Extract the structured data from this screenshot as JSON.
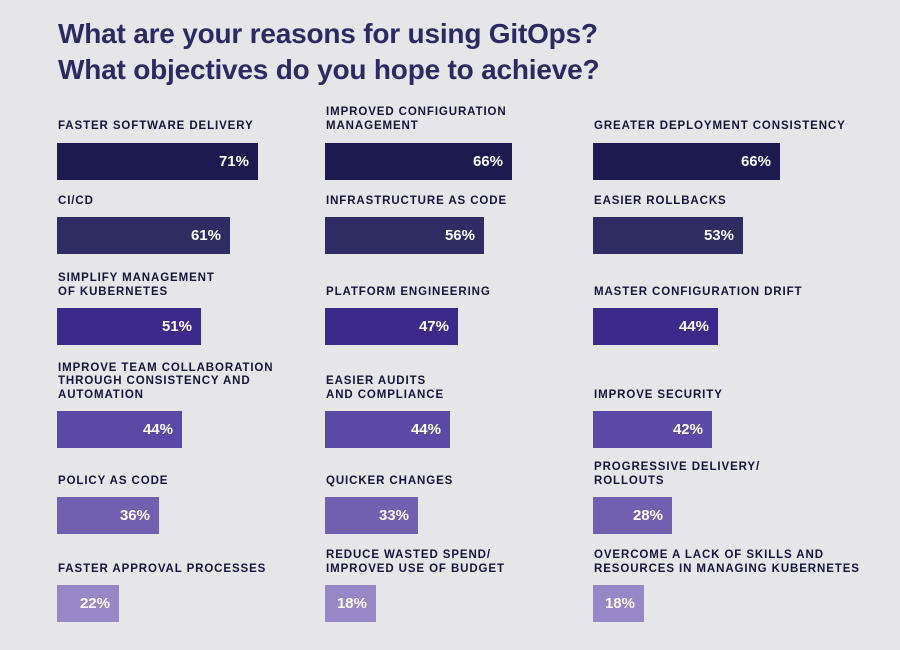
{
  "title_lines": [
    "What are your reasons for using GitOps?",
    "What objectives do you hope to achieve?"
  ],
  "chart_data": {
    "type": "bar",
    "title": "What are your reasons for using GitOps? What objectives do you hope to achieve?",
    "unit": "%",
    "xlim": [
      0,
      100
    ],
    "row_colors": [
      "#1c1a4f",
      "#2e2c63",
      "#3b2a8a",
      "#5a4aa5",
      "#7160b0",
      "#9887c7"
    ],
    "items": [
      {
        "row": 0,
        "col": 0,
        "label_lines": [
          "FASTER SOFTWARE DELIVERY"
        ],
        "value": 71,
        "value_label": "71%"
      },
      {
        "row": 0,
        "col": 1,
        "label_lines": [
          "IMPROVED CONFIGURATION",
          "MANAGEMENT"
        ],
        "value": 66,
        "value_label": "66%"
      },
      {
        "row": 0,
        "col": 2,
        "label_lines": [
          "GREATER DEPLOYMENT CONSISTENCY"
        ],
        "value": 66,
        "value_label": "66%"
      },
      {
        "row": 1,
        "col": 0,
        "label_lines": [
          "CI/CD"
        ],
        "value": 61,
        "value_label": "61%"
      },
      {
        "row": 1,
        "col": 1,
        "label_lines": [
          "INFRASTRUCTURE AS CODE"
        ],
        "value": 56,
        "value_label": "56%"
      },
      {
        "row": 1,
        "col": 2,
        "label_lines": [
          "EASIER ROLLBACKS"
        ],
        "value": 53,
        "value_label": "53%"
      },
      {
        "row": 2,
        "col": 0,
        "label_lines": [
          "SIMPLIFY MANAGEMENT",
          "OF KUBERNETES"
        ],
        "value": 51,
        "value_label": "51%"
      },
      {
        "row": 2,
        "col": 1,
        "label_lines": [
          "PLATFORM ENGINEERING"
        ],
        "value": 47,
        "value_label": "47%"
      },
      {
        "row": 2,
        "col": 2,
        "label_lines": [
          "MASTER CONFIGURATION DRIFT"
        ],
        "value": 44,
        "value_label": "44%"
      },
      {
        "row": 3,
        "col": 0,
        "label_lines": [
          "IMPROVE TEAM COLLABORATION",
          "THROUGH CONSISTENCY AND",
          "AUTOMATION"
        ],
        "value": 44,
        "value_label": "44%"
      },
      {
        "row": 3,
        "col": 1,
        "label_lines": [
          "EASIER AUDITS",
          "AND COMPLIANCE"
        ],
        "value": 44,
        "value_label": "44%"
      },
      {
        "row": 3,
        "col": 2,
        "label_lines": [
          "IMPROVE SECURITY"
        ],
        "value": 42,
        "value_label": "42%"
      },
      {
        "row": 4,
        "col": 0,
        "label_lines": [
          "POLICY AS CODE"
        ],
        "value": 36,
        "value_label": "36%"
      },
      {
        "row": 4,
        "col": 1,
        "label_lines": [
          "QUICKER CHANGES"
        ],
        "value": 33,
        "value_label": "33%"
      },
      {
        "row": 4,
        "col": 2,
        "label_lines": [
          "PROGRESSIVE DELIVERY/",
          "ROLLOUTS"
        ],
        "value": 28,
        "value_label": "28%"
      },
      {
        "row": 5,
        "col": 0,
        "label_lines": [
          "FASTER APPROVAL PROCESSES"
        ],
        "value": 22,
        "value_label": "22%"
      },
      {
        "row": 5,
        "col": 1,
        "label_lines": [
          "REDUCE WASTED SPEND/",
          "IMPROVED USE OF BUDGET"
        ],
        "value": 18,
        "value_label": "18%"
      },
      {
        "row": 5,
        "col": 2,
        "label_lines": [
          "OVERCOME A LACK OF SKILLS AND",
          "RESOURCES IN MANAGING KUBERNETES"
        ],
        "value": 18,
        "value_label": "18%"
      }
    ]
  }
}
